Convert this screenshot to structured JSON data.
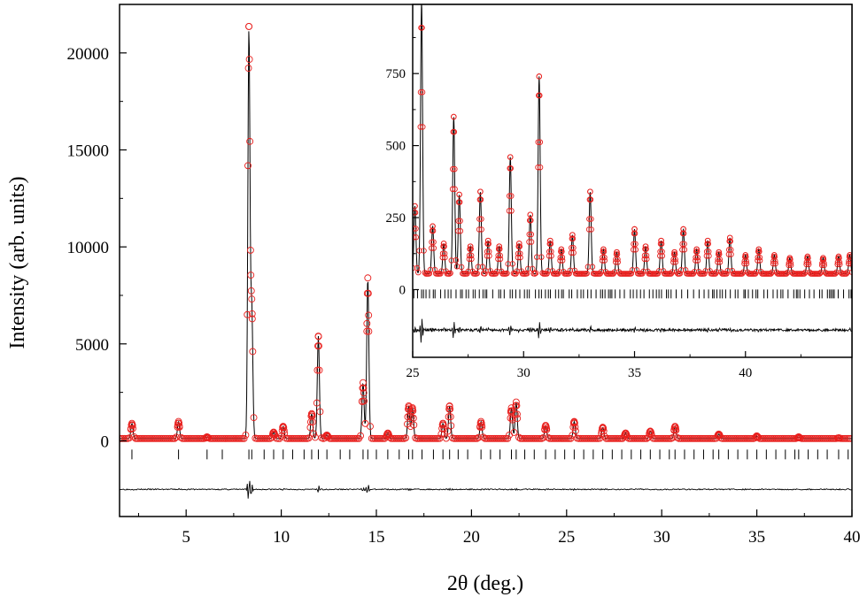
{
  "chart_data": [
    {
      "type": "scatter",
      "title": "",
      "xlabel": "2θ (deg.)",
      "ylabel": "Intensity (arb. units)",
      "xlim": [
        1.5,
        40
      ],
      "ylim": [
        -3900,
        22500
      ],
      "x_ticks": [
        5,
        10,
        15,
        20,
        25,
        30,
        35,
        40
      ],
      "y_ticks": [
        0,
        5000,
        10000,
        15000,
        20000
      ],
      "grid": false,
      "legend": "none",
      "colors": {
        "observed": "#e8201e",
        "calculated": "#000000",
        "difference": "#000000",
        "bragg": "#000000"
      },
      "background_level": 120,
      "bragg_offset": -700,
      "difference_offset": -2500,
      "peaks": [
        {
          "x": 2.15,
          "y": 900
        },
        {
          "x": 4.6,
          "y": 1000
        },
        {
          "x": 6.1,
          "y": 200
        },
        {
          "x": 8.3,
          "y": 21200
        },
        {
          "x": 8.45,
          "y": 6800
        },
        {
          "x": 9.6,
          "y": 450
        },
        {
          "x": 10.1,
          "y": 750
        },
        {
          "x": 11.6,
          "y": 1400
        },
        {
          "x": 11.95,
          "y": 5400
        },
        {
          "x": 12.4,
          "y": 300
        },
        {
          "x": 14.3,
          "y": 3000
        },
        {
          "x": 14.55,
          "y": 8400
        },
        {
          "x": 15.6,
          "y": 400
        },
        {
          "x": 16.7,
          "y": 1800
        },
        {
          "x": 16.9,
          "y": 1700
        },
        {
          "x": 18.5,
          "y": 900
        },
        {
          "x": 18.85,
          "y": 1800
        },
        {
          "x": 20.5,
          "y": 1000
        },
        {
          "x": 22.1,
          "y": 1700
        },
        {
          "x": 22.35,
          "y": 2000
        },
        {
          "x": 23.9,
          "y": 800
        },
        {
          "x": 25.4,
          "y": 1000
        },
        {
          "x": 26.9,
          "y": 700
        },
        {
          "x": 28.1,
          "y": 400
        },
        {
          "x": 29.4,
          "y": 500
        },
        {
          "x": 30.7,
          "y": 750
        },
        {
          "x": 33.0,
          "y": 350
        },
        {
          "x": 35.0,
          "y": 250
        },
        {
          "x": 37.2,
          "y": 200
        },
        {
          "x": 39.3,
          "y": 150
        }
      ],
      "bragg_positions": [
        2.15,
        4.6,
        6.1,
        6.9,
        8.3,
        8.45,
        9.1,
        9.6,
        10.1,
        10.6,
        11.2,
        11.6,
        11.95,
        12.4,
        13.1,
        13.6,
        14.3,
        14.55,
        15.0,
        15.6,
        16.2,
        16.7,
        16.9,
        17.4,
        18.0,
        18.5,
        18.85,
        19.3,
        19.8,
        20.5,
        21.0,
        21.5,
        22.1,
        22.35,
        22.8,
        23.3,
        23.9,
        24.4,
        24.9,
        25.4,
        25.9,
        26.4,
        26.9,
        27.4,
        27.9,
        28.4,
        28.9,
        29.4,
        29.9,
        30.4,
        30.7,
        31.2,
        31.7,
        32.2,
        32.7,
        33.0,
        33.5,
        34.0,
        34.5,
        35.0,
        35.5,
        36.0,
        36.5,
        37.0,
        37.2,
        37.7,
        38.2,
        38.7,
        39.3,
        39.8
      ]
    },
    {
      "type": "scatter",
      "title": "",
      "xlabel": "",
      "ylabel": "",
      "xlim": [
        25,
        44.8
      ],
      "ylim": [
        -235,
        990
      ],
      "x_ticks": [
        25,
        30,
        35,
        40
      ],
      "y_ticks": [
        0,
        250,
        500,
        750
      ],
      "grid": false,
      "legend": "none",
      "background_level": 55,
      "bragg_offset": -15,
      "difference_offset": -140,
      "peaks": [
        {
          "x": 25.1,
          "y": 290
        },
        {
          "x": 25.4,
          "y": 1000
        },
        {
          "x": 25.9,
          "y": 220
        },
        {
          "x": 26.4,
          "y": 160
        },
        {
          "x": 26.85,
          "y": 600
        },
        {
          "x": 27.1,
          "y": 330
        },
        {
          "x": 27.6,
          "y": 150
        },
        {
          "x": 28.05,
          "y": 340
        },
        {
          "x": 28.4,
          "y": 170
        },
        {
          "x": 28.9,
          "y": 150
        },
        {
          "x": 29.4,
          "y": 460
        },
        {
          "x": 29.8,
          "y": 160
        },
        {
          "x": 30.3,
          "y": 260
        },
        {
          "x": 30.7,
          "y": 740
        },
        {
          "x": 31.2,
          "y": 170
        },
        {
          "x": 31.7,
          "y": 140
        },
        {
          "x": 32.2,
          "y": 190
        },
        {
          "x": 33.0,
          "y": 340
        },
        {
          "x": 33.6,
          "y": 140
        },
        {
          "x": 34.2,
          "y": 130
        },
        {
          "x": 35.0,
          "y": 210
        },
        {
          "x": 35.5,
          "y": 150
        },
        {
          "x": 36.2,
          "y": 170
        },
        {
          "x": 36.8,
          "y": 130
        },
        {
          "x": 37.2,
          "y": 210
        },
        {
          "x": 37.8,
          "y": 140
        },
        {
          "x": 38.3,
          "y": 170
        },
        {
          "x": 38.8,
          "y": 130
        },
        {
          "x": 39.3,
          "y": 180
        },
        {
          "x": 40.0,
          "y": 120
        },
        {
          "x": 40.6,
          "y": 140
        },
        {
          "x": 41.3,
          "y": 120
        },
        {
          "x": 42.0,
          "y": 110
        },
        {
          "x": 42.8,
          "y": 115
        },
        {
          "x": 43.5,
          "y": 110
        },
        {
          "x": 44.2,
          "y": 115
        },
        {
          "x": 44.7,
          "y": 120
        }
      ]
    }
  ]
}
